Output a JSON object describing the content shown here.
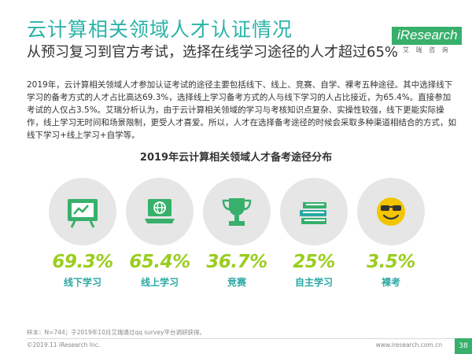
{
  "header": {
    "title": "云计算相关领域人才认证情况",
    "subtitle": "从预习复习到官方考试，选择在线学习途径的人才超过65%"
  },
  "logo": {
    "prefix": "i",
    "word": "Research",
    "sub": "艾 瑞 咨 询"
  },
  "body_text": "2019年，云计算相关领域人才参加认证考试的途径主要包括线下、线上、竞赛、自学、裸考五种途径。其中选择线下学习的备考方式的人才占比高达69.3%，选择线上学习备考方式的人与线下学习的人占比接近，为65.4%。直接参加考试的人仅占3.5%。艾瑞分析认为，由于云计算相关领域的学习与考核知识点复杂、实操性较强，线下更能实际操作，线上学习无时间和场景限制，更受人才喜爱。所以，人才在选择备考途径的时候会采取多种渠道相结合的方式，如线下学习+线上学习+自学等。",
  "chart_data": {
    "type": "bar",
    "title": "2019年云计算相关领域人才备考途径分布",
    "categories": [
      "线下学习",
      "线上学习",
      "竞赛",
      "自主学习",
      "裸考"
    ],
    "values": [
      69.3,
      65.4,
      36.7,
      25,
      3.5
    ],
    "value_labels": [
      "69.3%",
      "65.4%",
      "36.7%",
      "25%",
      "3.5%"
    ],
    "icons": [
      "chalkboard-icon",
      "laptop-globe-icon",
      "trophy-icon",
      "book-stack-icon",
      "smiley-sunglasses-icon"
    ],
    "value_color": "#9acd1f",
    "label_color": "#2aa9a4",
    "circle_color": "#e6e6e6",
    "icon_color": "#37b06b"
  },
  "footer": {
    "note": "样本：N=744；于2019年10月艾瑞通过qq survey平台调研获得。",
    "copyright": "©2019.11 iResearch Inc.",
    "website": "www.iresearch.com.cn",
    "page": "38"
  },
  "colors": {
    "title": "#2bb3a8",
    "brand": "#37b06b"
  }
}
